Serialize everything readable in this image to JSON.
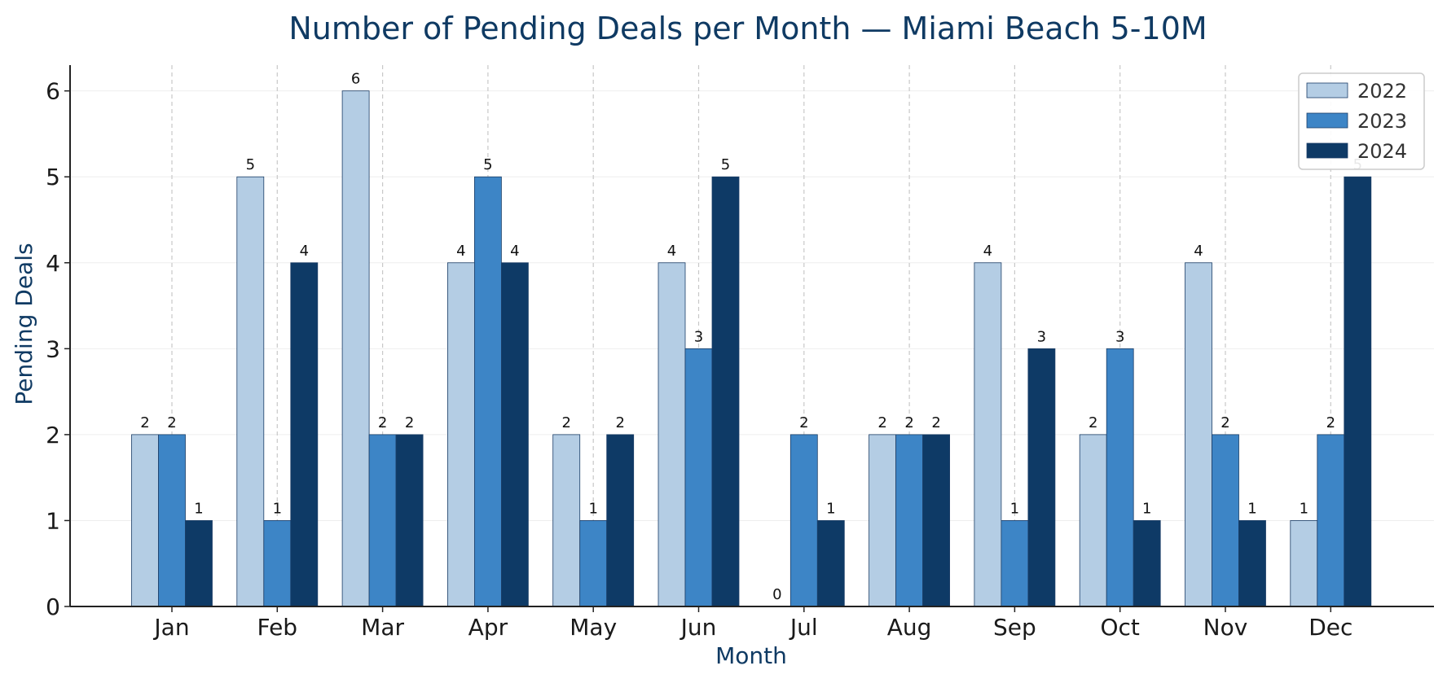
{
  "chart_data": {
    "type": "bar",
    "title": "Number of Pending Deals per Month — Miami Beach 5-10M",
    "xlabel": "Month",
    "ylabel": "Pending Deals",
    "categories": [
      "Jan",
      "Feb",
      "Mar",
      "Apr",
      "May",
      "Jun",
      "Jul",
      "Aug",
      "Sep",
      "Oct",
      "Nov",
      "Dec"
    ],
    "series": [
      {
        "name": "2022",
        "color": "#b4cde4",
        "values": [
          2,
          5,
          6,
          4,
          2,
          4,
          0,
          2,
          4,
          2,
          4,
          1
        ]
      },
      {
        "name": "2023",
        "color": "#3d85c6",
        "values": [
          2,
          1,
          2,
          5,
          1,
          3,
          2,
          2,
          1,
          3,
          2,
          2
        ]
      },
      {
        "name": "2024",
        "color": "#0e3a66",
        "values": [
          1,
          4,
          2,
          4,
          2,
          5,
          1,
          2,
          3,
          1,
          1,
          5
        ]
      }
    ],
    "ylim": [
      0,
      6.3
    ],
    "yticks": [
      0,
      1,
      2,
      3,
      4,
      5,
      6
    ],
    "grid": {
      "x": "dashed",
      "y": "light"
    },
    "legend_position": "top-right"
  }
}
